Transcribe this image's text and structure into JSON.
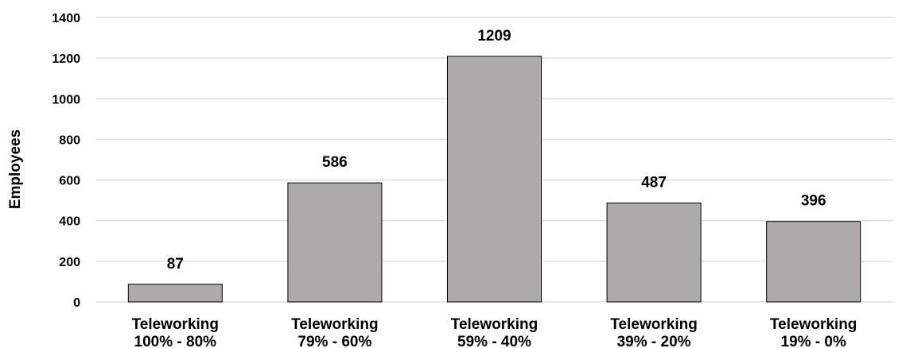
{
  "chart_data": {
    "type": "bar",
    "title": "",
    "xlabel": "",
    "ylabel": "Employees",
    "ylim": [
      0,
      1400
    ],
    "yticks": [
      0,
      200,
      400,
      600,
      800,
      1000,
      1200,
      1400
    ],
    "grid": true,
    "legend": "none",
    "categories": [
      [
        "Teleworking",
        "100% - 80%"
      ],
      [
        "Teleworking",
        "79% - 60%"
      ],
      [
        "Teleworking",
        "59% - 40%"
      ],
      [
        "Teleworking",
        "39% - 20%"
      ],
      [
        "Teleworking",
        "19% - 0%"
      ]
    ],
    "values": [
      87,
      586,
      1209,
      487,
      396
    ],
    "data_labels": [
      "87",
      "586",
      "1209",
      "487",
      "396"
    ],
    "colors": {
      "bar_fill": "#aeaaaa",
      "bar_stroke": "#000000",
      "grid": "#d9d9d9",
      "axis": "#d9d9d9",
      "text": "#000000"
    }
  }
}
